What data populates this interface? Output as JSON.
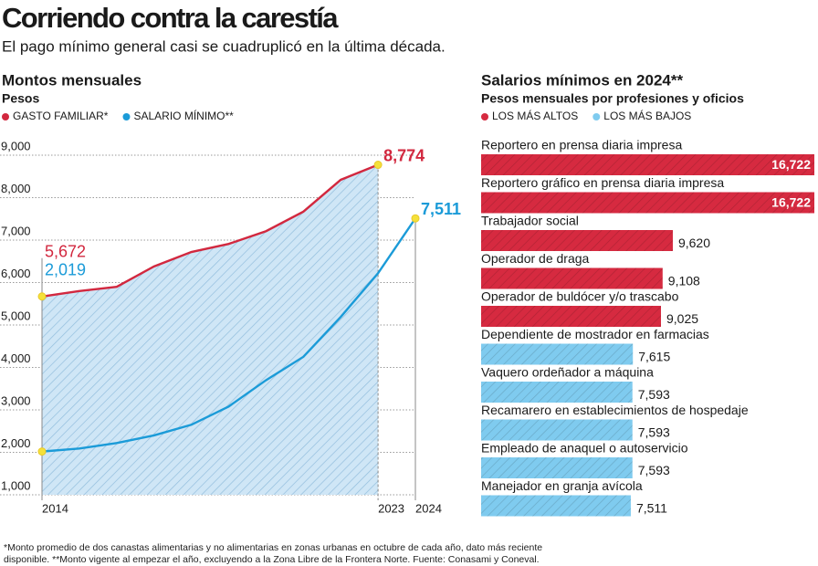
{
  "header": {
    "title": "Corriendo contra la carestía",
    "subtitle": "El pago mínimo general casi se cuadruplicó en la última década."
  },
  "chart_data": [
    {
      "type": "line",
      "title": "Montos mensuales",
      "y_label": "Pesos",
      "x": [
        2014,
        2015,
        2016,
        2017,
        2018,
        2019,
        2020,
        2021,
        2022,
        2023,
        2024
      ],
      "xlim": [
        2014,
        2024
      ],
      "xticks": [
        2014,
        2023,
        2024
      ],
      "ylim": [
        1000,
        9000
      ],
      "yticks": [
        {
          "value": 1000,
          "label": "1,000"
        },
        {
          "value": 2000,
          "label": "2,000"
        },
        {
          "value": 3000,
          "label": "3,000"
        },
        {
          "value": 4000,
          "label": "4,000"
        },
        {
          "value": 5000,
          "label": "5,000"
        },
        {
          "value": 6000,
          "label": "6,000"
        },
        {
          "value": 7000,
          "label": "7,000"
        },
        {
          "value": 8000,
          "label": "8,000"
        },
        {
          "value": 9000,
          "label": "9,000"
        }
      ],
      "grid": true,
      "area_color": "#cfe6f6",
      "series": [
        {
          "name": "GASTO FAMILIAR*",
          "color": "#d2283f",
          "area": true,
          "values": [
            5672,
            5800,
            5900,
            6380,
            6720,
            6910,
            7210,
            7670,
            8420,
            8774,
            null
          ],
          "value_labels": [
            "5,672",
            null,
            null,
            null,
            null,
            null,
            null,
            null,
            null,
            "8,774",
            null
          ]
        },
        {
          "name": "SALARIO MÍNIMO**",
          "color": "#1b9bd8",
          "values": [
            2019,
            2090,
            2220,
            2400,
            2650,
            3080,
            3700,
            4250,
            5190,
            6220,
            7511
          ],
          "value_labels": [
            "2,019",
            null,
            null,
            null,
            null,
            null,
            null,
            null,
            null,
            null,
            "7,511"
          ]
        }
      ]
    },
    {
      "type": "bar",
      "orientation": "horizontal",
      "title": "Salarios mínimos en 2024**",
      "subtitle": "Pesos mensuales por profesiones y oficios",
      "categories": [
        "Reportero en prensa diaria impresa",
        "Reportero gráfico en prensa diaria impresa",
        "Trabajador social",
        "Operador de draga",
        "Operador de buldócer y/o trascabo",
        "Dependiente de mostrador en farmacias",
        "Vaquero ordeñador a máquina",
        "Recamarero en establecimientos de hospedaje",
        "Empleado de anaquel o autoservicio",
        "Manejador en granja avícola"
      ],
      "series": [
        {
          "name": "LOS MÁS ALTOS",
          "color": "#d62a40",
          "values": [
            16722,
            16722,
            9620,
            9108,
            9025,
            null,
            null,
            null,
            null,
            null
          ],
          "value_labels": [
            "16,722",
            "16,722",
            "9,620",
            "9,108",
            "9,025",
            null,
            null,
            null,
            null,
            null
          ]
        },
        {
          "name": "LOS MÁS BAJOS",
          "color": "#7fcbef",
          "values": [
            null,
            null,
            null,
            null,
            null,
            7615,
            7593,
            7593,
            7593,
            7511
          ],
          "value_labels": [
            null,
            null,
            null,
            null,
            null,
            "7,615",
            "7,593",
            "7,593",
            "7,593",
            "7,511"
          ]
        }
      ]
    }
  ],
  "footnote": "*Monto promedio de dos canastas alimentarias y no alimentarias en zonas urbanas en octubre de cada año, dato más reciente disponible. **Monto vigente al empezar el año, excluyendo a la Zona Libre de la Frontera Norte. Fuente: Conasami y Coneval."
}
